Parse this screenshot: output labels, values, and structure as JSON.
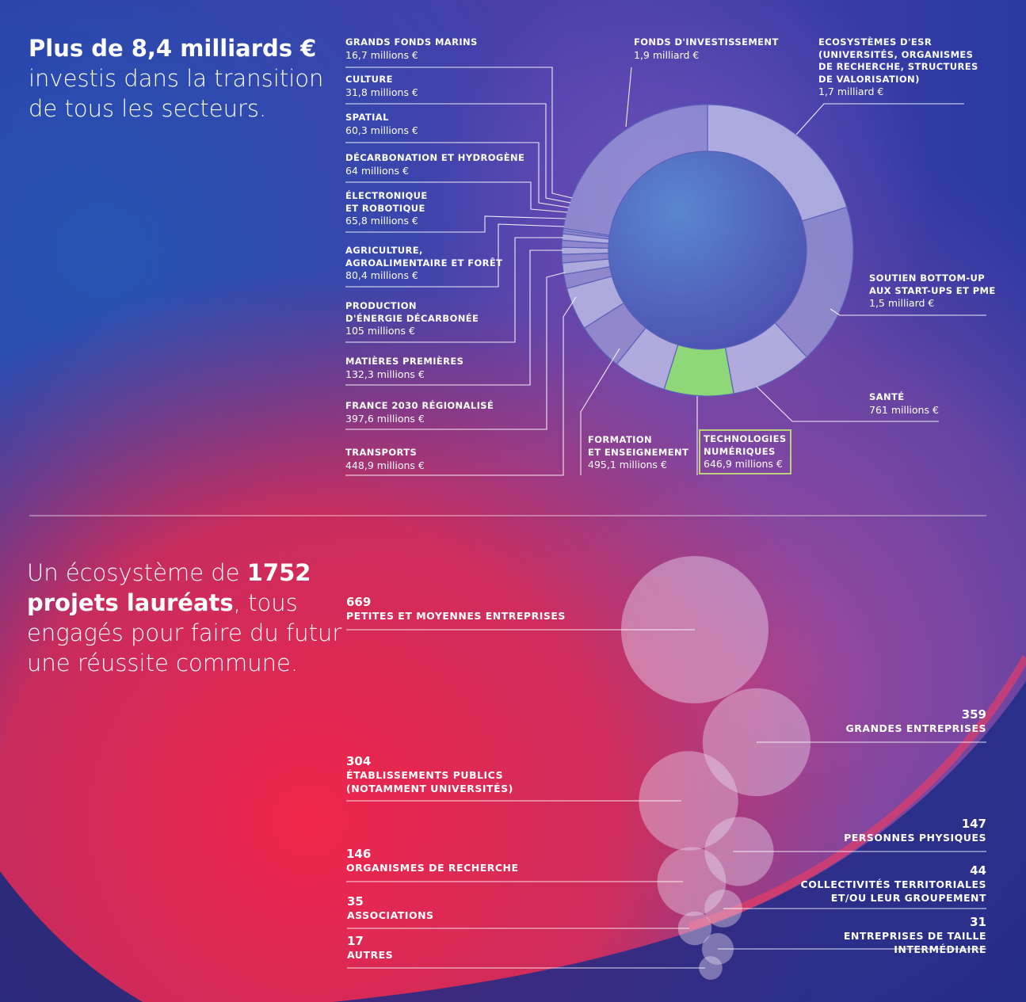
{
  "headline": {
    "bold": "Plus de 8,4 milliards €",
    "rest": "investis dans la transition de tous les secteurs."
  },
  "subhead": {
    "pre": "Un écosystème de",
    "bold": "1752 projets lauréats",
    "post": ", tous engagés pour faire du futur une réussite commune."
  },
  "colors": {
    "segment": "#c3c7ec",
    "segment_alt": "#a9afe0",
    "highlight": "#8fd87a",
    "highlight_border": "#b8d37a",
    "line": "#ffffff"
  },
  "chart_data": [
    {
      "type": "pie",
      "title": "",
      "unit": "millions €",
      "categories": [
        "Ecosystèmes d'ESR (universités, organismes de recherche, structures de valorisation)",
        "Soutien bottom-up aux start-ups et PME",
        "Santé",
        "Technologies numériques",
        "Formation et enseignement",
        "Transports",
        "France 2030 régionalisé",
        "Matières premières",
        "Production d'énergie décarbonée",
        "Agriculture, agroalimentaire et forêt",
        "Électronique et robotique",
        "Décarbonation et hydrogène",
        "Spatial",
        "Culture",
        "Grands fonds marins",
        "Fonds d'investissement"
      ],
      "values": [
        1700,
        1500,
        761,
        646.9,
        495.1,
        448.9,
        397.6,
        132.3,
        105,
        80.4,
        65.8,
        64,
        60.3,
        31.8,
        16.7,
        1900
      ],
      "highlight_index": 3,
      "labels": {
        "esr": {
          "name": "Ecosystèmes d'ESR\n(universités, organismes\nde recherche, structures\nde valorisation)",
          "value": "1,7 milliard €"
        },
        "startups": {
          "name": "Soutien bottom-up\naux start-ups et PME",
          "value": "1,5 milliard €"
        },
        "sante": {
          "name": "Santé",
          "value": "761 millions €"
        },
        "numerique": {
          "name": "Technologies\nnumériques",
          "value": "646,9 millions €"
        },
        "formation": {
          "name": "Formation\net enseignement",
          "value": "495,1 millions €"
        },
        "transports": {
          "name": "Transports",
          "value": "448,9 millions €"
        },
        "regional": {
          "name": "France 2030 régionalisé",
          "value": "397,6 millions €"
        },
        "matieres": {
          "name": "Matières premières",
          "value": "132,3 millions €"
        },
        "energie": {
          "name": "Production\nd'énergie décarbonée",
          "value": "105 millions €"
        },
        "agri": {
          "name": "Agriculture,\nagroalimentaire et forêt",
          "value": "80,4 millions €"
        },
        "electro": {
          "name": "Électronique\net robotique",
          "value": "65,8 millions €"
        },
        "decarb": {
          "name": "Décarbonation et hydrogène",
          "value": "64 millions €"
        },
        "spatial": {
          "name": "Spatial",
          "value": "60,3 millions €"
        },
        "culture": {
          "name": "Culture",
          "value": "31,8 millions €"
        },
        "marins": {
          "name": "Grands fonds marins",
          "value": "16,7 millions €"
        },
        "fonds": {
          "name": "Fonds d'investissement",
          "value": "1,9 milliard €"
        }
      }
    },
    {
      "type": "scatter",
      "title": "",
      "series": [
        {
          "name": "Petites et moyennes entreprises",
          "value": 669,
          "count_label": "669"
        },
        {
          "name": "Grandes entreprises",
          "value": 359,
          "count_label": "359"
        },
        {
          "name": "Établissements publics\n(notamment universités)",
          "value": 304,
          "count_label": "304"
        },
        {
          "name": "Personnes physiques",
          "value": 147,
          "count_label": "147"
        },
        {
          "name": "Organismes de recherche",
          "value": 146,
          "count_label": "146"
        },
        {
          "name": "Collectivités territoriales\net/ou leur groupement",
          "value": 44,
          "count_label": "44"
        },
        {
          "name": "Associations",
          "value": 35,
          "count_label": "35"
        },
        {
          "name": "Entreprises de taille intermédiaire",
          "value": 31,
          "count_label": "31"
        },
        {
          "name": "Autres",
          "value": 17,
          "count_label": "17"
        }
      ]
    }
  ]
}
